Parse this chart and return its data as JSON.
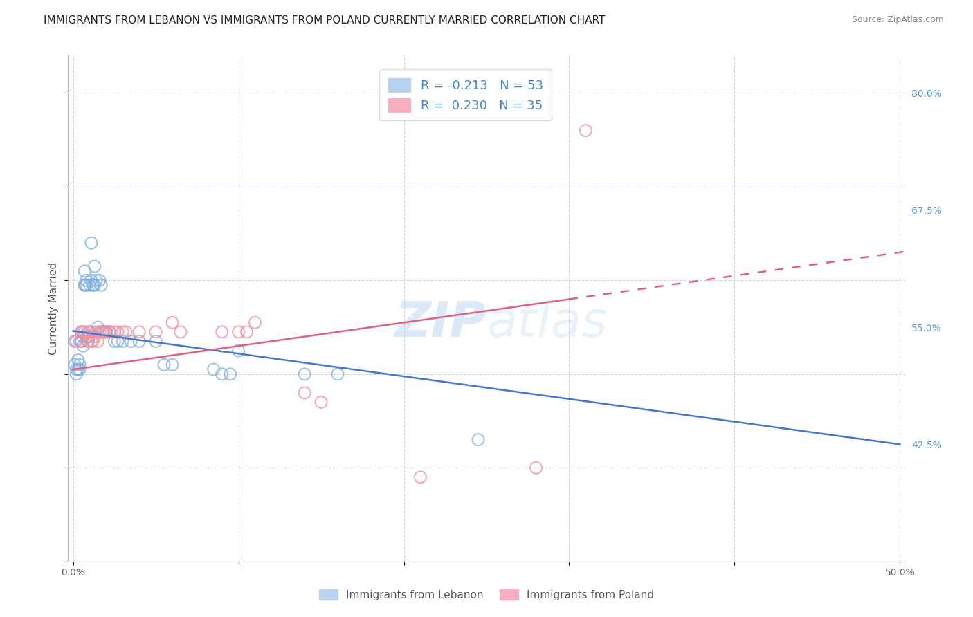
{
  "title": "IMMIGRANTS FROM LEBANON VS IMMIGRANTS FROM POLAND CURRENTLY MARRIED CORRELATION CHART",
  "source": "Source: ZipAtlas.com",
  "ylabel": "Currently Married",
  "xlim": [
    -0.003,
    0.503
  ],
  "ylim": [
    0.3,
    0.84
  ],
  "xtick_values": [
    0.0,
    0.1,
    0.2,
    0.3,
    0.4,
    0.5
  ],
  "xticklabels": [
    "0.0%",
    "",
    "",
    "",
    "",
    "50.0%"
  ],
  "ytick_right_values": [
    0.425,
    0.55,
    0.675,
    0.8
  ],
  "ytick_right_labels": [
    "42.5%",
    "55.0%",
    "67.5%",
    "80.0%"
  ],
  "watermark": "ZIPatlas",
  "background_color": "#ffffff",
  "grid_color": "#ccd6e8",
  "title_fontsize": 11,
  "axis_label_fontsize": 11,
  "tick_fontsize": 10,
  "legend_fontsize": 12,
  "blue_series": {
    "name": "Immigrants from Lebanon",
    "color": "#80b0e0",
    "x": [
      0.001,
      0.001,
      0.002,
      0.002,
      0.003,
      0.003,
      0.004,
      0.004,
      0.005,
      0.005,
      0.005,
      0.006,
      0.006,
      0.007,
      0.007,
      0.007,
      0.008,
      0.008,
      0.009,
      0.009,
      0.009,
      0.01,
      0.01,
      0.01,
      0.011,
      0.011,
      0.012,
      0.012,
      0.013,
      0.013,
      0.014,
      0.015,
      0.016,
      0.017,
      0.018,
      0.019,
      0.02,
      0.022,
      0.025,
      0.027,
      0.03,
      0.035,
      0.04,
      0.05,
      0.055,
      0.06,
      0.085,
      0.09,
      0.095,
      0.1,
      0.14,
      0.16,
      0.245
    ],
    "y": [
      0.535,
      0.51,
      0.505,
      0.5,
      0.505,
      0.515,
      0.51,
      0.505,
      0.535,
      0.545,
      0.535,
      0.54,
      0.53,
      0.595,
      0.61,
      0.595,
      0.6,
      0.595,
      0.545,
      0.54,
      0.535,
      0.545,
      0.595,
      0.54,
      0.6,
      0.64,
      0.595,
      0.595,
      0.615,
      0.595,
      0.6,
      0.55,
      0.6,
      0.595,
      0.545,
      0.545,
      0.545,
      0.545,
      0.535,
      0.535,
      0.535,
      0.535,
      0.535,
      0.535,
      0.51,
      0.51,
      0.505,
      0.5,
      0.5,
      0.525,
      0.5,
      0.5,
      0.43
    ]
  },
  "pink_series": {
    "name": "Immigrants from Poland",
    "color": "#f090a0",
    "x": [
      0.002,
      0.004,
      0.005,
      0.006,
      0.007,
      0.008,
      0.009,
      0.01,
      0.011,
      0.012,
      0.013,
      0.014,
      0.015,
      0.016,
      0.017,
      0.018,
      0.02,
      0.022,
      0.025,
      0.027,
      0.03,
      0.032,
      0.04,
      0.05,
      0.06,
      0.065,
      0.09,
      0.1,
      0.105,
      0.11,
      0.14,
      0.15,
      0.21,
      0.28,
      0.31
    ],
    "y": [
      0.535,
      0.535,
      0.545,
      0.545,
      0.545,
      0.54,
      0.535,
      0.545,
      0.535,
      0.535,
      0.54,
      0.545,
      0.535,
      0.545,
      0.545,
      0.545,
      0.545,
      0.545,
      0.545,
      0.545,
      0.545,
      0.545,
      0.545,
      0.545,
      0.555,
      0.545,
      0.545,
      0.545,
      0.545,
      0.555,
      0.48,
      0.47,
      0.39,
      0.4,
      0.76
    ]
  },
  "blue_line": {
    "x0": 0.0,
    "y0": 0.546,
    "x1": 0.5,
    "y1": 0.425
  },
  "pink_line": {
    "x0": 0.0,
    "y0": 0.505,
    "x1": 0.5,
    "y1": 0.63
  },
  "pink_line_dash_start": 0.3
}
